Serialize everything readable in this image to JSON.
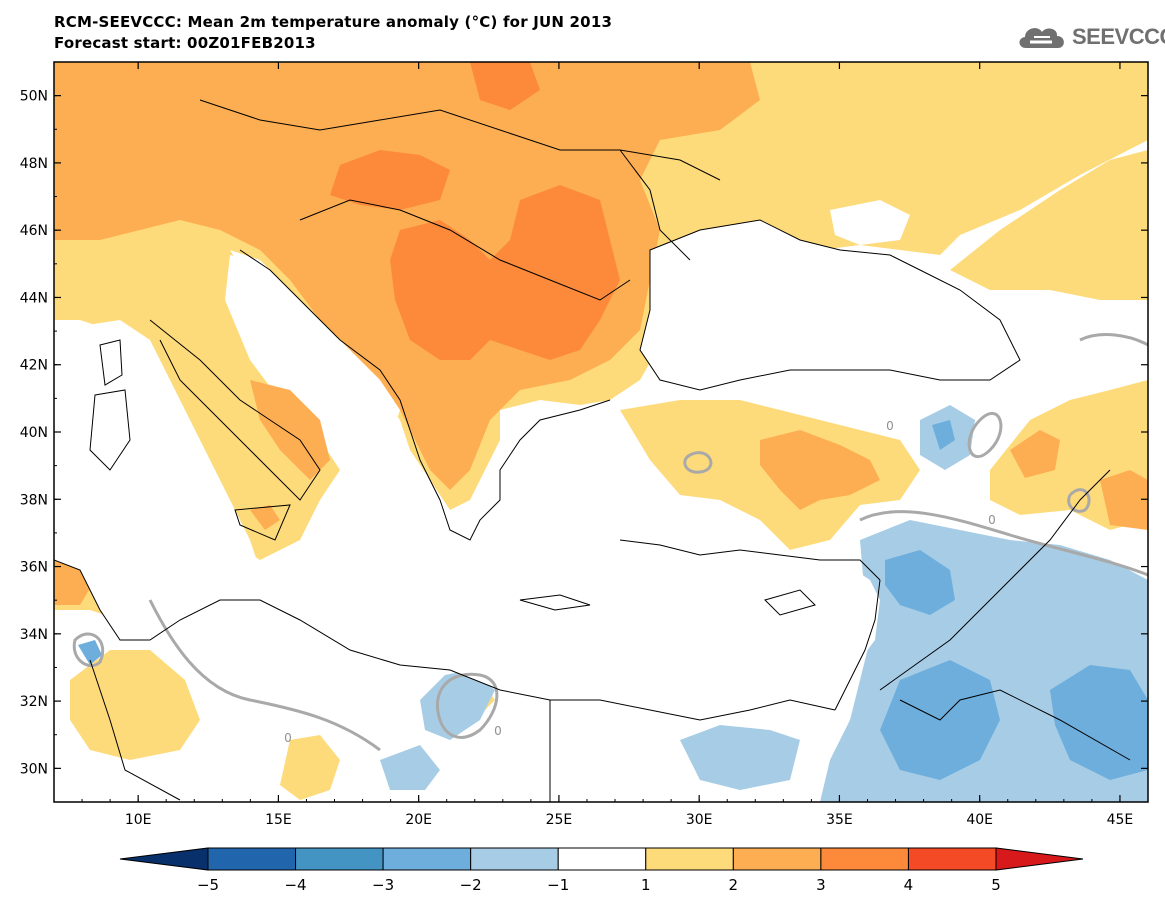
{
  "header": {
    "title_line1": "RCM-SEEVCCC: Mean 2m temperature anomaly (°C) for JUN 2013",
    "title_line2": "Forecast start: 00Z01FEB2013"
  },
  "logo": {
    "text": "SEEVCCC",
    "icon": "cloud-icon"
  },
  "map": {
    "lat_labels": [
      "50N",
      "48N",
      "46N",
      "44N",
      "42N",
      "40N",
      "38N",
      "36N",
      "34N",
      "32N",
      "30N"
    ],
    "lon_labels": [
      "10E",
      "15E",
      "20E",
      "25E",
      "30E",
      "35E",
      "40E",
      "45E"
    ],
    "lat_range": [
      29,
      51
    ],
    "lon_range": [
      7,
      46
    ],
    "contour_label": "0"
  },
  "colorbar": {
    "tick_labels": [
      "−5",
      "−4",
      "−3",
      "−2",
      "−1",
      "1",
      "2",
      "3",
      "4",
      "5"
    ],
    "colors": [
      "#08306b",
      "#2166ac",
      "#4393c3",
      "#6eaedc",
      "#a7cde6",
      "#ffffff",
      "#fedb7a",
      "#fdae52",
      "#fc8a3a",
      "#f44a26",
      "#d7191c"
    ]
  },
  "palette": {
    "anomaly_1_2": "#fedb7a",
    "anomaly_2_3": "#fdae52",
    "anomaly_3_4": "#fc8a3a",
    "anomaly_m1_m2": "#a7cde6",
    "anomaly_m2_m3": "#6eaedc"
  }
}
